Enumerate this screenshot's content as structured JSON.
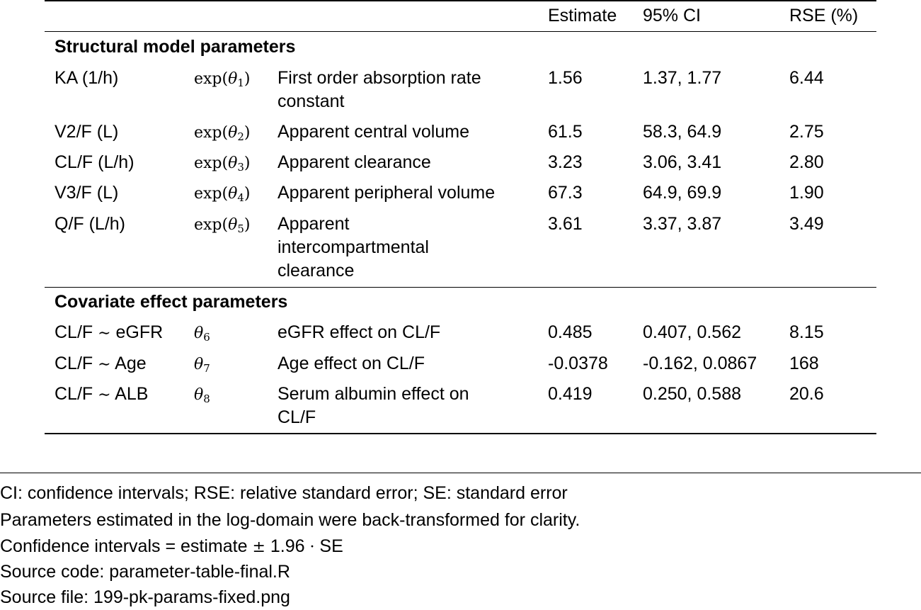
{
  "table": {
    "header": {
      "estimate": "Estimate",
      "ci": "95% CI",
      "rse": "RSE (%)"
    },
    "sections": [
      {
        "title": "Structural model parameters",
        "rows": [
          {
            "param": "KA (1/h)",
            "transform": "exp",
            "theta": "θ",
            "theta_index": "1",
            "description": "First order absorption rate constant",
            "estimate": "1.56",
            "ci": "1.37, 1.77",
            "rse": "6.44"
          },
          {
            "param": "V2/F (L)",
            "transform": "exp",
            "theta": "θ",
            "theta_index": "2",
            "description": "Apparent central volume",
            "estimate": "61.5",
            "ci": "58.3, 64.9",
            "rse": "2.75"
          },
          {
            "param": "CL/F (L/h)",
            "transform": "exp",
            "theta": "θ",
            "theta_index": "3",
            "description": "Apparent clearance",
            "estimate": "3.23",
            "ci": "3.06, 3.41",
            "rse": "2.80"
          },
          {
            "param": "V3/F (L)",
            "transform": "exp",
            "theta": "θ",
            "theta_index": "4",
            "description": "Apparent peripheral volume",
            "estimate": "67.3",
            "ci": "64.9, 69.9",
            "rse": "1.90"
          },
          {
            "param": "Q/F (L/h)",
            "transform": "exp",
            "theta": "θ",
            "theta_index": "5",
            "description": "Apparent intercompartmental clearance",
            "estimate": "3.61",
            "ci": "3.37, 3.87",
            "rse": "3.49"
          }
        ]
      },
      {
        "title": "Covariate effect parameters",
        "rows": [
          {
            "param_prefix": "CL/F",
            "tilde": "∼",
            "param_suffix": "eGFR",
            "theta": "θ",
            "theta_index": "6",
            "description": "eGFR effect on CL/F",
            "estimate": "0.485",
            "ci": "0.407, 0.562",
            "rse": "8.15"
          },
          {
            "param_prefix": "CL/F",
            "tilde": "∼",
            "param_suffix": "Age",
            "theta": "θ",
            "theta_index": "7",
            "description": "Age effect on CL/F",
            "estimate": "-0.0378",
            "ci": "-0.162, 0.0867",
            "rse": "168"
          },
          {
            "param_prefix": "CL/F",
            "tilde": "∼",
            "param_suffix": "ALB",
            "theta": "θ",
            "theta_index": "8",
            "description": "Serum albumin effect on CL/F",
            "estimate": "0.419",
            "ci": "0.250, 0.588",
            "rse": "20.6"
          }
        ]
      }
    ]
  },
  "notes": {
    "abbreviations": "CI: confidence intervals; RSE: relative standard error; SE: standard error",
    "back_transform": "Parameters estimated in the log-domain were back-transformed for clarity.",
    "ci_formula_prefix": "Confidence intervals = estimate",
    "ci_formula_pm": "±",
    "ci_formula_factor": "1.96",
    "ci_formula_dot": "·",
    "ci_formula_suffix": "SE",
    "source_code": "Source code: parameter-table-final.R",
    "source_file": "Source file: 199-pk-params-fixed.png"
  }
}
